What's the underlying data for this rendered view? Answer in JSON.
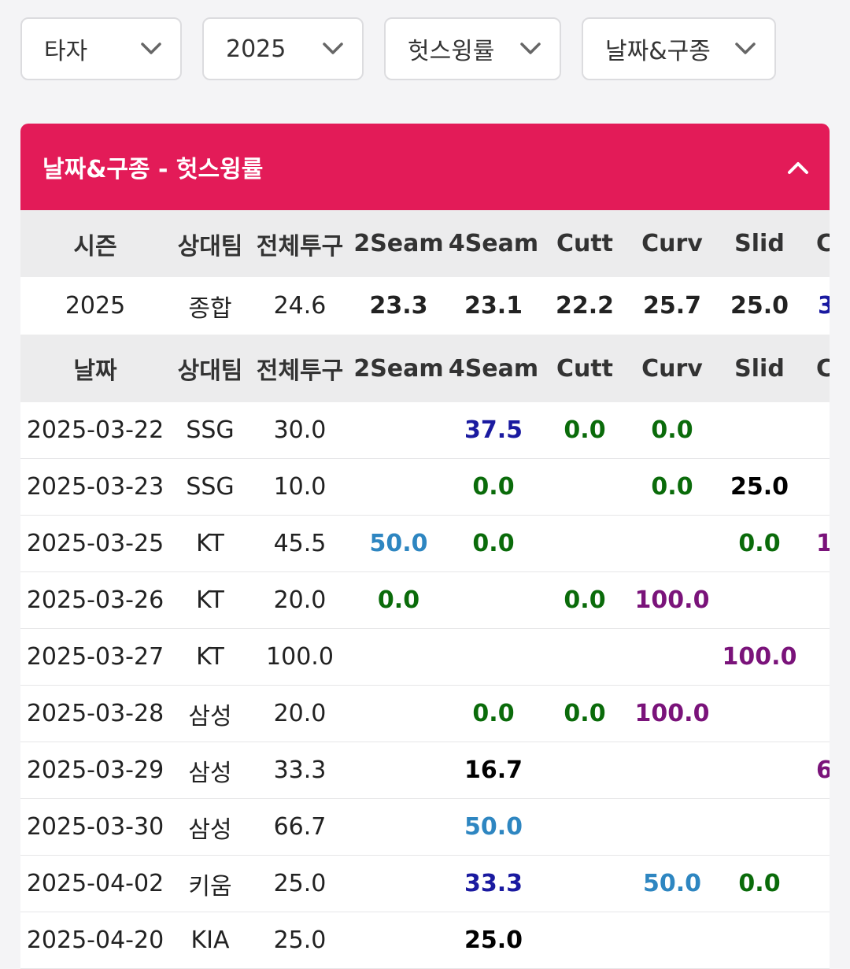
{
  "filters": {
    "batter": "타자",
    "year": "2025",
    "stat": "헛스윙률",
    "split": "날짜&구종"
  },
  "panel": {
    "title": "날짜&구종 - 헛스윙률",
    "collapse_icon": "chevron-up-icon",
    "accent_color": "#e31b58"
  },
  "table": {
    "season_headers": [
      "시즌",
      "상대팀",
      "전체투구",
      "2Seam",
      "4Seam",
      "Cutt",
      "Curv",
      "Slid",
      "C"
    ],
    "summary_row": [
      "2025",
      "종합",
      "24.6",
      "23.3",
      "23.1",
      "22.2",
      "25.7",
      "25.0",
      "3"
    ],
    "date_headers": [
      "날짜",
      "상대팀",
      "전체투구",
      "2Seam",
      "4Seam",
      "Cutt",
      "Curv",
      "Slid",
      "C"
    ],
    "value_colors": {
      "zero": "#0a6b0a",
      "low": "#2e86c1",
      "mid": "#000000",
      "high": "#1a1aa0",
      "max": "#7a137a"
    },
    "rows": [
      {
        "date": "2025-03-22",
        "team": "SSG",
        "total": "30.0",
        "cells": [
          {
            "v": "",
            "c": ""
          },
          {
            "v": "37.5",
            "c": "high"
          },
          {
            "v": "0.0",
            "c": "zero"
          },
          {
            "v": "0.0",
            "c": "zero"
          },
          {
            "v": "",
            "c": ""
          },
          {
            "v": "",
            "c": ""
          }
        ]
      },
      {
        "date": "2025-03-23",
        "team": "SSG",
        "total": "10.0",
        "cells": [
          {
            "v": "",
            "c": ""
          },
          {
            "v": "0.0",
            "c": "zero"
          },
          {
            "v": "",
            "c": ""
          },
          {
            "v": "0.0",
            "c": "zero"
          },
          {
            "v": "25.0",
            "c": "mid"
          },
          {
            "v": "",
            "c": ""
          }
        ]
      },
      {
        "date": "2025-03-25",
        "team": "KT",
        "total": "45.5",
        "cells": [
          {
            "v": "50.0",
            "c": "low"
          },
          {
            "v": "0.0",
            "c": "zero"
          },
          {
            "v": "",
            "c": ""
          },
          {
            "v": "",
            "c": ""
          },
          {
            "v": "0.0",
            "c": "zero"
          },
          {
            "v": "1",
            "c": "max"
          }
        ]
      },
      {
        "date": "2025-03-26",
        "team": "KT",
        "total": "20.0",
        "cells": [
          {
            "v": "0.0",
            "c": "zero"
          },
          {
            "v": "",
            "c": ""
          },
          {
            "v": "0.0",
            "c": "zero"
          },
          {
            "v": "100.0",
            "c": "max"
          },
          {
            "v": "",
            "c": ""
          },
          {
            "v": "",
            "c": ""
          }
        ]
      },
      {
        "date": "2025-03-27",
        "team": "KT",
        "total": "100.0",
        "cells": [
          {
            "v": "",
            "c": ""
          },
          {
            "v": "",
            "c": ""
          },
          {
            "v": "",
            "c": ""
          },
          {
            "v": "",
            "c": ""
          },
          {
            "v": "100.0",
            "c": "max"
          },
          {
            "v": "",
            "c": ""
          }
        ]
      },
      {
        "date": "2025-03-28",
        "team": "삼성",
        "total": "20.0",
        "cells": [
          {
            "v": "",
            "c": ""
          },
          {
            "v": "0.0",
            "c": "zero"
          },
          {
            "v": "0.0",
            "c": "zero"
          },
          {
            "v": "100.0",
            "c": "max"
          },
          {
            "v": "",
            "c": ""
          },
          {
            "v": "",
            "c": ""
          }
        ]
      },
      {
        "date": "2025-03-29",
        "team": "삼성",
        "total": "33.3",
        "cells": [
          {
            "v": "",
            "c": ""
          },
          {
            "v": "16.7",
            "c": "mid"
          },
          {
            "v": "",
            "c": ""
          },
          {
            "v": "",
            "c": ""
          },
          {
            "v": "",
            "c": ""
          },
          {
            "v": "6",
            "c": "max"
          }
        ]
      },
      {
        "date": "2025-03-30",
        "team": "삼성",
        "total": "66.7",
        "cells": [
          {
            "v": "",
            "c": ""
          },
          {
            "v": "50.0",
            "c": "low"
          },
          {
            "v": "",
            "c": ""
          },
          {
            "v": "",
            "c": ""
          },
          {
            "v": "",
            "c": ""
          },
          {
            "v": "",
            "c": ""
          }
        ]
      },
      {
        "date": "2025-04-02",
        "team": "키움",
        "total": "25.0",
        "cells": [
          {
            "v": "",
            "c": ""
          },
          {
            "v": "33.3",
            "c": "high"
          },
          {
            "v": "",
            "c": ""
          },
          {
            "v": "50.0",
            "c": "low"
          },
          {
            "v": "0.0",
            "c": "zero"
          },
          {
            "v": "",
            "c": ""
          }
        ]
      },
      {
        "date": "2025-04-20",
        "team": "KIA",
        "total": "25.0",
        "cells": [
          {
            "v": "",
            "c": ""
          },
          {
            "v": "25.0",
            "c": "mid"
          },
          {
            "v": "",
            "c": ""
          },
          {
            "v": "",
            "c": ""
          },
          {
            "v": "",
            "c": ""
          },
          {
            "v": "",
            "c": ""
          }
        ]
      }
    ]
  }
}
